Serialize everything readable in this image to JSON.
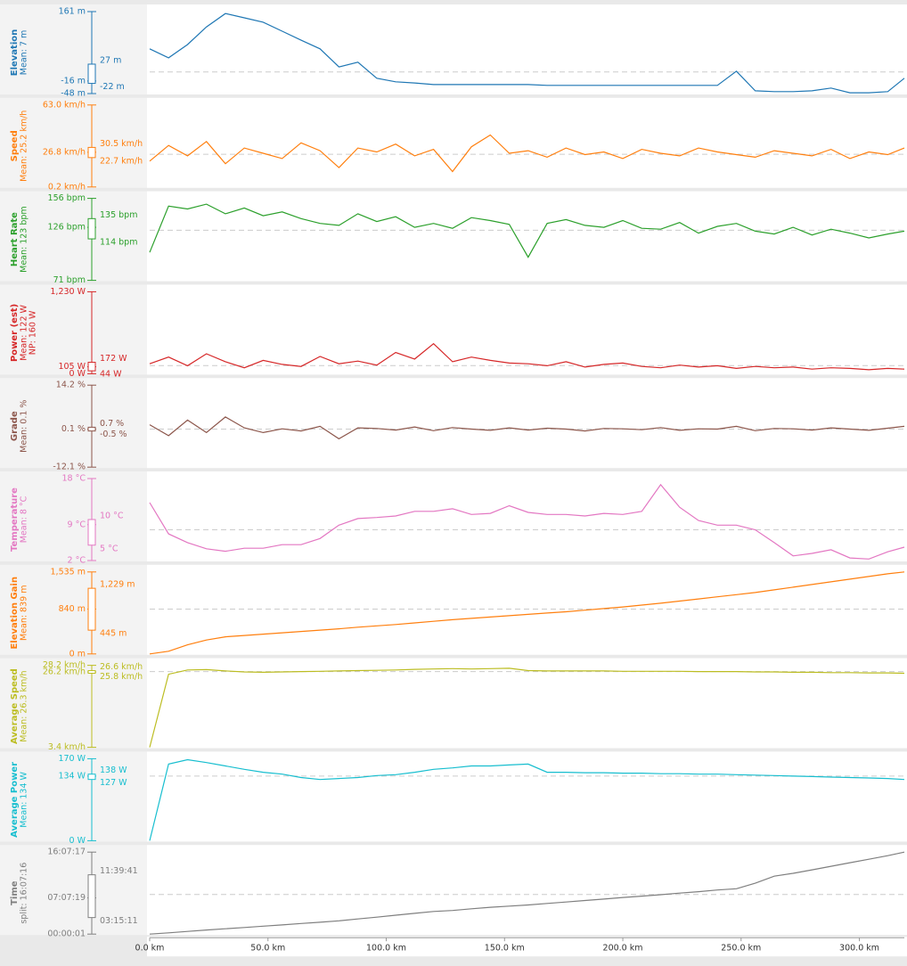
{
  "chart_data": [
    {
      "type": "line",
      "title": "Elevation",
      "subtitle": [
        "Mean: 7 m"
      ],
      "color": "#1f77b4",
      "mean": 7,
      "ylim": [
        -48,
        161
      ],
      "yticks": [
        {
          "value": 161,
          "label": "161 m"
        },
        {
          "value": -16,
          "label": "-16 m"
        },
        {
          "value": -48,
          "label": "-48 m"
        }
      ],
      "box": [
        {
          "value": -22,
          "label": "-22 m"
        },
        {
          "value": 27,
          "label": "27 m"
        }
      ],
      "xlim": [
        0,
        319
      ],
      "x": [
        0,
        8,
        16,
        24,
        32,
        40,
        48,
        56,
        64,
        72,
        80,
        88,
        96,
        104,
        112,
        120,
        128,
        136,
        144,
        152,
        160,
        168,
        176,
        184,
        192,
        200,
        208,
        216,
        224,
        232,
        240,
        248,
        256,
        264,
        272,
        280,
        288,
        296,
        304,
        312,
        319
      ],
      "values": [
        66,
        43,
        77,
        122,
        156,
        145,
        134,
        111,
        88,
        66,
        20,
        32,
        -9,
        -18,
        -21,
        -25,
        -25,
        -25,
        -25,
        -25,
        -25,
        -27,
        -27,
        -27,
        -27,
        -27,
        -27,
        -27,
        -27,
        -27,
        -27,
        9,
        -41,
        -43,
        -43,
        -41,
        -34,
        -46,
        -46,
        -43,
        -9
      ]
    },
    {
      "type": "line",
      "title": "Speed",
      "subtitle": [
        "Mean: 25.2 km/h"
      ],
      "color": "#ff7f0e",
      "mean": 25.2,
      "ylim": [
        0.2,
        63
      ],
      "yticks": [
        {
          "value": 63,
          "label": "63.0 km/h"
        },
        {
          "value": 26.8,
          "label": "26.8 km/h"
        },
        {
          "value": 0.2,
          "label": "0.2 km/h"
        }
      ],
      "box": [
        {
          "value": 22.7,
          "label": "22.7 km/h"
        },
        {
          "value": 30.5,
          "label": "30.5 km/h"
        }
      ],
      "xlim": [
        0,
        319
      ],
      "x": [
        0,
        8,
        16,
        24,
        32,
        40,
        48,
        56,
        64,
        72,
        80,
        88,
        96,
        104,
        112,
        120,
        128,
        136,
        144,
        152,
        160,
        168,
        176,
        184,
        192,
        200,
        208,
        216,
        224,
        232,
        240,
        248,
        256,
        264,
        272,
        280,
        288,
        296,
        304,
        312,
        319
      ],
      "values": [
        20,
        32,
        24,
        35,
        18,
        30,
        26,
        22,
        34,
        28,
        15,
        30,
        27,
        33,
        24,
        29,
        12,
        31,
        40,
        26,
        28,
        23,
        30,
        25,
        27,
        22,
        29,
        26,
        24,
        30,
        27,
        25,
        23,
        28,
        26,
        24,
        29,
        22,
        27,
        25,
        30
      ]
    },
    {
      "type": "line",
      "title": "Heart Rate",
      "subtitle": [
        "Mean: 123 bpm"
      ],
      "color": "#2ca02c",
      "mean": 123,
      "ylim": [
        71,
        156
      ],
      "yticks": [
        {
          "value": 156,
          "label": "156 bpm"
        },
        {
          "value": 126,
          "label": "126 bpm"
        },
        {
          "value": 71,
          "label": "71 bpm"
        }
      ],
      "box": [
        {
          "value": 114,
          "label": "114 bpm"
        },
        {
          "value": 135,
          "label": "135 bpm"
        }
      ],
      "xlim": [
        0,
        319
      ],
      "x": [
        0,
        8,
        16,
        24,
        32,
        40,
        48,
        56,
        64,
        72,
        80,
        88,
        96,
        104,
        112,
        120,
        128,
        136,
        144,
        152,
        160,
        168,
        176,
        184,
        192,
        200,
        208,
        216,
        224,
        232,
        240,
        248,
        256,
        264,
        272,
        280,
        288,
        296,
        304,
        312,
        319
      ],
      "values": [
        100,
        148,
        145,
        150,
        140,
        146,
        138,
        142,
        135,
        130,
        128,
        140,
        132,
        137,
        126,
        130,
        125,
        136,
        133,
        129,
        95,
        130,
        134,
        128,
        126,
        133,
        125,
        124,
        131,
        120,
        127,
        130,
        122,
        119,
        126,
        118,
        124,
        120,
        115,
        119,
        122
      ]
    },
    {
      "type": "line",
      "title": "Power (est)",
      "subtitle": [
        "Mean: 122 W",
        "NP: 160 W"
      ],
      "color": "#d62728",
      "mean": 122,
      "ylim": [
        0,
        1230
      ],
      "yticks": [
        {
          "value": 1230,
          "label": "1,230 W"
        },
        {
          "value": 105,
          "label": "105 W"
        },
        {
          "value": 0,
          "label": "0 W"
        }
      ],
      "box": [
        {
          "value": 44,
          "label": "44 W"
        },
        {
          "value": 172,
          "label": "172 W"
        }
      ],
      "xlim": [
        0,
        319
      ],
      "x": [
        0,
        8,
        16,
        24,
        32,
        40,
        48,
        56,
        64,
        72,
        80,
        88,
        96,
        104,
        112,
        120,
        128,
        136,
        144,
        152,
        160,
        168,
        176,
        184,
        192,
        200,
        208,
        216,
        224,
        232,
        240,
        248,
        256,
        264,
        272,
        280,
        288,
        296,
        304,
        312,
        319
      ],
      "values": [
        150,
        250,
        120,
        300,
        180,
        90,
        200,
        140,
        110,
        260,
        150,
        190,
        130,
        320,
        220,
        450,
        180,
        250,
        200,
        160,
        150,
        120,
        180,
        100,
        140,
        160,
        110,
        90,
        130,
        100,
        120,
        80,
        110,
        90,
        100,
        70,
        90,
        80,
        60,
        80,
        70
      ]
    },
    {
      "type": "line",
      "title": "Grade",
      "subtitle": [
        "Mean: 0.1 %"
      ],
      "color": "#8c564b",
      "mean": 0.1,
      "ylim": [
        -12.1,
        14.2
      ],
      "yticks": [
        {
          "value": 14.2,
          "label": "14.2 %"
        },
        {
          "value": 0.1,
          "label": "0.1 %"
        },
        {
          "value": -12.1,
          "label": "-12.1 %"
        }
      ],
      "box": [
        {
          "value": -0.5,
          "label": "-0.5 %"
        },
        {
          "value": 0.7,
          "label": "0.7 %"
        }
      ],
      "xlim": [
        0,
        319
      ],
      "x": [
        0,
        8,
        16,
        24,
        32,
        40,
        48,
        56,
        64,
        72,
        80,
        88,
        96,
        104,
        112,
        120,
        128,
        136,
        144,
        152,
        160,
        168,
        176,
        184,
        192,
        200,
        208,
        216,
        224,
        232,
        240,
        248,
        256,
        264,
        272,
        280,
        288,
        296,
        304,
        312,
        319
      ],
      "values": [
        1.5,
        -2,
        3,
        -1,
        4,
        0.5,
        -1,
        0.2,
        -0.5,
        1,
        -3,
        0.5,
        0.3,
        -0.2,
        0.8,
        -0.4,
        0.6,
        0.1,
        -0.3,
        0.5,
        -0.2,
        0.4,
        0.1,
        -0.5,
        0.3,
        0.2,
        -0.1,
        0.6,
        -0.3,
        0.2,
        0.1,
        1,
        -0.4,
        0.3,
        0.2,
        -0.2,
        0.5,
        0.1,
        -0.3,
        0.4,
        1
      ]
    },
    {
      "type": "line",
      "title": "Temperature",
      "subtitle": [
        "Mean: 8 °C"
      ],
      "color": "#e377c2",
      "mean": 8,
      "ylim": [
        2,
        18
      ],
      "yticks": [
        {
          "value": 18,
          "label": "18 °C"
        },
        {
          "value": 9,
          "label": "9 °C"
        },
        {
          "value": 2,
          "label": "2 °C"
        }
      ],
      "box": [
        {
          "value": 5,
          "label": "5 °C"
        },
        {
          "value": 10,
          "label": "10 °C"
        }
      ],
      "xlim": [
        0,
        319
      ],
      "x": [
        0,
        8,
        16,
        24,
        32,
        40,
        48,
        56,
        64,
        72,
        80,
        88,
        96,
        104,
        112,
        120,
        128,
        136,
        144,
        152,
        160,
        168,
        176,
        184,
        192,
        200,
        208,
        216,
        224,
        232,
        240,
        248,
        256,
        264,
        272,
        280,
        288,
        296,
        304,
        312,
        319
      ],
      "values": [
        13.3,
        7.2,
        5.5,
        4.3,
        3.8,
        4.4,
        4.4,
        5.1,
        5.1,
        6.3,
        8.9,
        10.2,
        10.4,
        10.7,
        11.6,
        11.6,
        12.1,
        11,
        11.2,
        12.7,
        11.4,
        11,
        11,
        10.7,
        11.2,
        11,
        11.6,
        16.8,
        12.4,
        9.8,
        8.9,
        8.9,
        8,
        5.5,
        2.9,
        3.4,
        4.1,
        2.5,
        2.3,
        3.7,
        4.6
      ]
    },
    {
      "type": "line",
      "title": "Elevation Gain",
      "subtitle": [
        "Mean: 839 m"
      ],
      "color": "#ff7f0e",
      "mean": 839,
      "ylim": [
        0,
        1535
      ],
      "yticks": [
        {
          "value": 1535,
          "label": "1,535 m"
        },
        {
          "value": 840,
          "label": "840 m"
        },
        {
          "value": 0,
          "label": "0 m"
        }
      ],
      "box": [
        {
          "value": 445,
          "label": "445 m"
        },
        {
          "value": 1229,
          "label": "1,229 m"
        }
      ],
      "xlim": [
        0,
        319
      ],
      "x": [
        0,
        8,
        16,
        24,
        32,
        40,
        48,
        56,
        64,
        72,
        80,
        88,
        96,
        104,
        112,
        120,
        128,
        136,
        144,
        152,
        160,
        168,
        176,
        184,
        192,
        200,
        208,
        216,
        224,
        232,
        240,
        248,
        256,
        264,
        272,
        280,
        288,
        296,
        304,
        312,
        319
      ],
      "values": [
        0,
        50,
        170,
        260,
        320,
        345,
        370,
        395,
        420,
        445,
        470,
        500,
        525,
        550,
        580,
        610,
        640,
        665,
        690,
        715,
        740,
        765,
        790,
        820,
        850,
        880,
        915,
        950,
        990,
        1030,
        1070,
        1110,
        1150,
        1200,
        1250,
        1300,
        1350,
        1400,
        1450,
        1500,
        1535
      ]
    },
    {
      "type": "line",
      "title": "Average Speed",
      "subtitle": [
        "Mean: 26.3 km/h"
      ],
      "color": "#bcbd22",
      "mean": 26.3,
      "ylim": [
        3.4,
        28.2
      ],
      "yticks": [
        {
          "value": 28.2,
          "label": "28.2 km/h"
        },
        {
          "value": 26.2,
          "label": "26.2 km/h"
        },
        {
          "value": 3.4,
          "label": "3.4 km/h"
        }
      ],
      "box": [
        {
          "value": 25.8,
          "label": "25.8 km/h"
        },
        {
          "value": 26.6,
          "label": "26.6 km/h"
        }
      ],
      "xlim": [
        0,
        319
      ],
      "x": [
        0,
        8,
        16,
        24,
        32,
        40,
        48,
        56,
        64,
        72,
        80,
        88,
        96,
        104,
        112,
        120,
        128,
        136,
        144,
        152,
        160,
        168,
        176,
        184,
        192,
        200,
        208,
        216,
        224,
        232,
        240,
        248,
        256,
        264,
        272,
        280,
        288,
        296,
        304,
        312,
        319
      ],
      "values": [
        3.4,
        25.5,
        26.8,
        26.9,
        26.5,
        26.2,
        26.1,
        26.2,
        26.3,
        26.4,
        26.5,
        26.6,
        26.7,
        26.8,
        27,
        27.1,
        27.2,
        27.1,
        27.2,
        27.3,
        26.6,
        26.5,
        26.5,
        26.5,
        26.5,
        26.4,
        26.4,
        26.4,
        26.4,
        26.3,
        26.3,
        26.3,
        26.2,
        26.2,
        26.1,
        26.1,
        26,
        26,
        25.9,
        25.9,
        25.8
      ]
    },
    {
      "type": "line",
      "title": "Average Power",
      "subtitle": [
        "Mean: 134 W"
      ],
      "color": "#17becf",
      "mean": 134,
      "ylim": [
        0,
        170
      ],
      "yticks": [
        {
          "value": 170,
          "label": "170 W"
        },
        {
          "value": 134,
          "label": "134 W"
        },
        {
          "value": 0,
          "label": "0 W"
        }
      ],
      "box": [
        {
          "value": 127,
          "label": "127 W"
        },
        {
          "value": 138,
          "label": "138 W"
        }
      ],
      "xlim": [
        0,
        319
      ],
      "x": [
        0,
        8,
        16,
        24,
        32,
        40,
        48,
        56,
        64,
        72,
        80,
        88,
        96,
        104,
        112,
        120,
        128,
        136,
        144,
        152,
        160,
        168,
        176,
        184,
        192,
        200,
        208,
        216,
        224,
        232,
        240,
        248,
        256,
        264,
        272,
        280,
        288,
        296,
        304,
        312,
        319
      ],
      "values": [
        0,
        159,
        168,
        162,
        155,
        148,
        142,
        138,
        131,
        127,
        129,
        131,
        135,
        137,
        142,
        148,
        151,
        155,
        155,
        157,
        159,
        142,
        142,
        141,
        141,
        140,
        140,
        139,
        139,
        138,
        138,
        137,
        136,
        135,
        134,
        133,
        132,
        131,
        130,
        129,
        127
      ]
    },
    {
      "type": "line",
      "title": "Time",
      "subtitle": [
        "split: 16:07:16"
      ],
      "color": "#7f7f7f",
      "mean": 28080,
      "ylim": [
        1,
        58037
      ],
      "yticks": [
        {
          "value": 58037,
          "label": "16:07:17"
        },
        {
          "value": 25639,
          "label": "07:07:19"
        },
        {
          "value": 1,
          "label": "00:00:01"
        }
      ],
      "box": [
        {
          "value": 11711,
          "label": "03:15:11"
        },
        {
          "value": 41981,
          "label": "11:39:41"
        }
      ],
      "xlim": [
        0,
        319
      ],
      "x": [
        0,
        8,
        16,
        24,
        32,
        40,
        48,
        56,
        64,
        72,
        80,
        88,
        96,
        104,
        112,
        120,
        128,
        136,
        144,
        152,
        160,
        168,
        176,
        184,
        192,
        200,
        208,
        216,
        224,
        232,
        240,
        248,
        256,
        264,
        272,
        280,
        288,
        296,
        304,
        312,
        319
      ],
      "values": [
        1,
        900,
        1900,
        2900,
        3800,
        4700,
        5600,
        6500,
        7500,
        8400,
        9400,
        10700,
        12000,
        13400,
        14700,
        16000,
        16700,
        17900,
        19000,
        19800,
        20600,
        21700,
        22700,
        23800,
        24800,
        25900,
        26900,
        27900,
        29000,
        30000,
        31200,
        32100,
        36000,
        41000,
        43000,
        45500,
        48000,
        50500,
        53000,
        55500,
        58037
      ],
      "xticks": [
        {
          "value": 0,
          "label": "0.0 km"
        },
        {
          "value": 50,
          "label": "50.0 km"
        },
        {
          "value": 100,
          "label": "100.0 km"
        },
        {
          "value": 150,
          "label": "150.0 km"
        },
        {
          "value": 200,
          "label": "200.0 km"
        },
        {
          "value": 250,
          "label": "250.0 km"
        },
        {
          "value": 300,
          "label": "300.0 km"
        }
      ]
    }
  ]
}
